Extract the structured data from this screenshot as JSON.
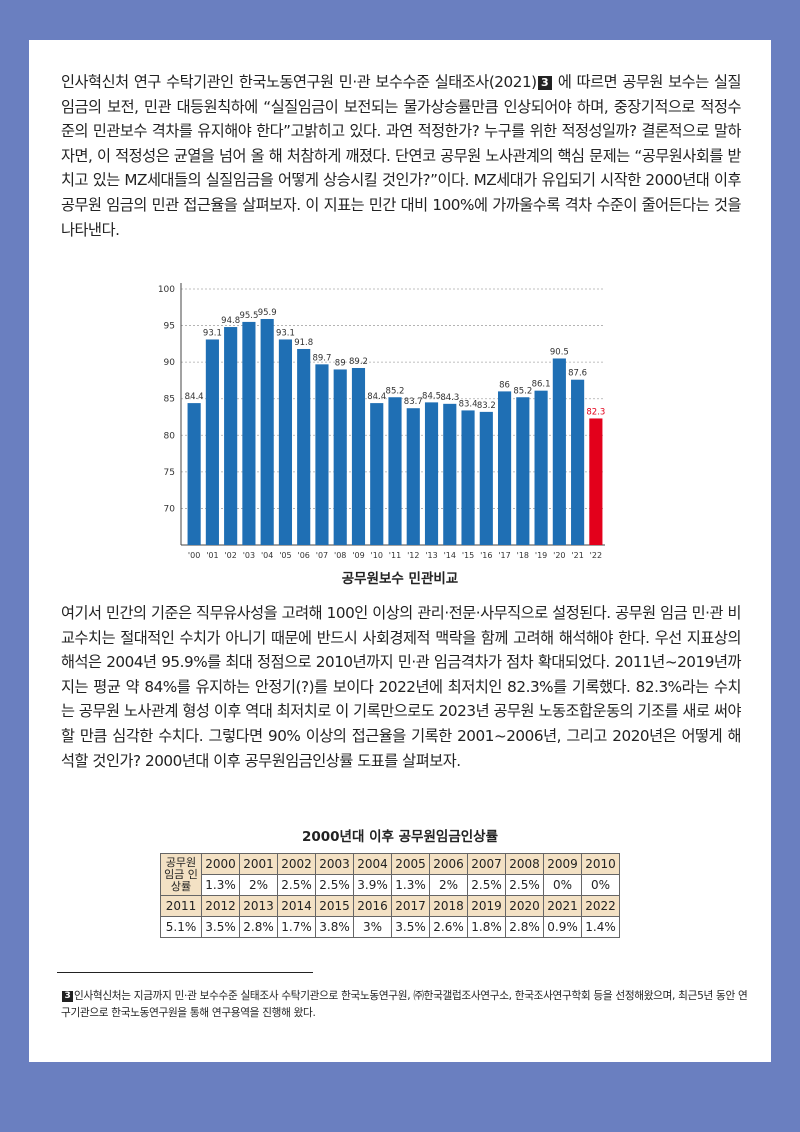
{
  "paragraph1": {
    "before_ref": "인사혁신처 연구 수탁기관인 한국노동연구원 민·관 보수수준 실태조사(2021)",
    "ref": "3",
    "after_ref": " 에 따르면 공무원 보수는 실질임금의 보전, 민관 대등원칙하에 “실질임금이 보전되는 물가상승률만큼 인상되어야 하며, 중장기적으로 적정수준의 민관보수 격차를 유지해야 한다”고밝히고 있다. 과연 적정한가? 누구를 위한 적정성일까? 결론적으로 말하자면, 이 적정성은 균열을 넘어 올 해 처참하게 깨졌다. 단연코 공무원 노사관계의 핵심 문제는 “공무원사회를 받치고 있는 MZ세대들의 실질임금을 어떻게 상승시킬 것인가?”이다. MZ세대가 유입되기 시작한 2000년대 이후 공무원 임금의 민관 접근율을 살펴보자. 이 지표는 민간 대비 100%에 가까울수록 격차 수준이 줄어든다는 것을 나타낸다."
  },
  "chart_data": {
    "type": "bar",
    "title": "공무원보수 민관비교",
    "categories": [
      "'00",
      "'01",
      "'02",
      "'03",
      "'04",
      "'05",
      "'06",
      "'07",
      "'08",
      "'09",
      "'10",
      "'11",
      "'12",
      "'13",
      "'14",
      "'15",
      "'16",
      "'17",
      "'18",
      "'19",
      "'20",
      "'21",
      "'22"
    ],
    "values": [
      84.4,
      93.1,
      94.8,
      95.5,
      95.9,
      93.1,
      91.8,
      89.7,
      89,
      89.2,
      84.4,
      85.2,
      83.7,
      84.5,
      84.3,
      83.4,
      83.2,
      86,
      85.2,
      86.1,
      90.5,
      87.6,
      82.3
    ],
    "value_labels": [
      "84.4",
      "93.1",
      "94.8",
      "95.5",
      "95.9",
      "93.1",
      "91.8",
      "89.7",
      "89",
      "89.2",
      "84.4",
      "85.2",
      "83.7",
      "84.5",
      "84.3",
      "83.4",
      "83.2",
      "86",
      "85.2",
      "86.1",
      "90.5",
      "87.6",
      "82.3"
    ],
    "yticks": [
      "100",
      "95",
      "90",
      "85",
      "80",
      "75",
      "70"
    ],
    "ylim": [
      65,
      100
    ],
    "grid": true,
    "colors": {
      "bar": "#1f6fb4",
      "highlight": "#e3001b"
    },
    "highlight_index": 22
  },
  "paragraph2": "여기서 민간의 기준은 직무유사성을 고려해 100인 이상의 관리·전문·사무직으로 설정된다. 공무원 임금 민·관 비교수치는 절대적인 수치가 아니기 때문에 반드시 사회경제적 맥락을 함께 고려해 해석해야 한다. 우선 지표상의 해석은 2004년 95.9%를 최대 정점으로 2010년까지 민·관 임금격차가 점차 확대되었다. 2011년~2019년까지는 평균 약 84%를 유지하는 안정기(?)를 보이다 2022년에 최저치인 82.3%를 기록했다. 82.3%라는 수치는 공무원 노사관계 형성 이후 역대 최저치로 이 기록만으로도 2023년 공무원 노동조합운동의 기조를 새로 써야 할 만큼 심각한 수치다. 그렇다면 90% 이상의 접근율을 기록한 2001~2006년, 그리고 2020년은 어떻게 해석할 것인가? 2000년대 이후 공무원임금인상률 도표를 살펴보자.",
  "table": {
    "title": "2000년대 이후 공무원임금인상률",
    "row_label": "공무원 임금 인상률",
    "years1": [
      "2000",
      "2001",
      "2002",
      "2003",
      "2004",
      "2005",
      "2006",
      "2007",
      "2008",
      "2009",
      "2010"
    ],
    "rates1": [
      "1.3%",
      "2%",
      "2.5%",
      "2.5%",
      "3.9%",
      "1.3%",
      "2%",
      "2.5%",
      "2.5%",
      "0%",
      "0%"
    ],
    "years2": [
      "2011",
      "2012",
      "2013",
      "2014",
      "2015",
      "2016",
      "2017",
      "2018",
      "2019",
      "2020",
      "2021",
      "2022"
    ],
    "rates2": [
      "5.1%",
      "3.5%",
      "2.8%",
      "1.7%",
      "3.8%",
      "3%",
      "3.5%",
      "2.6%",
      "1.8%",
      "2.8%",
      "0.9%",
      "1.4%"
    ]
  },
  "footnote": {
    "ref": "3",
    "text": "인사혁신처는 지금까지 민·관 보수수준 실태조사 수탁기관으로 한국노동연구원, ㈜한국갤럽조사연구소, 한국조사연구학회 등을 선정해왔으며, 최근5년 동안 연구기관으로 한국노동연구원을 통해 연구용역을 진행해 왔다."
  }
}
